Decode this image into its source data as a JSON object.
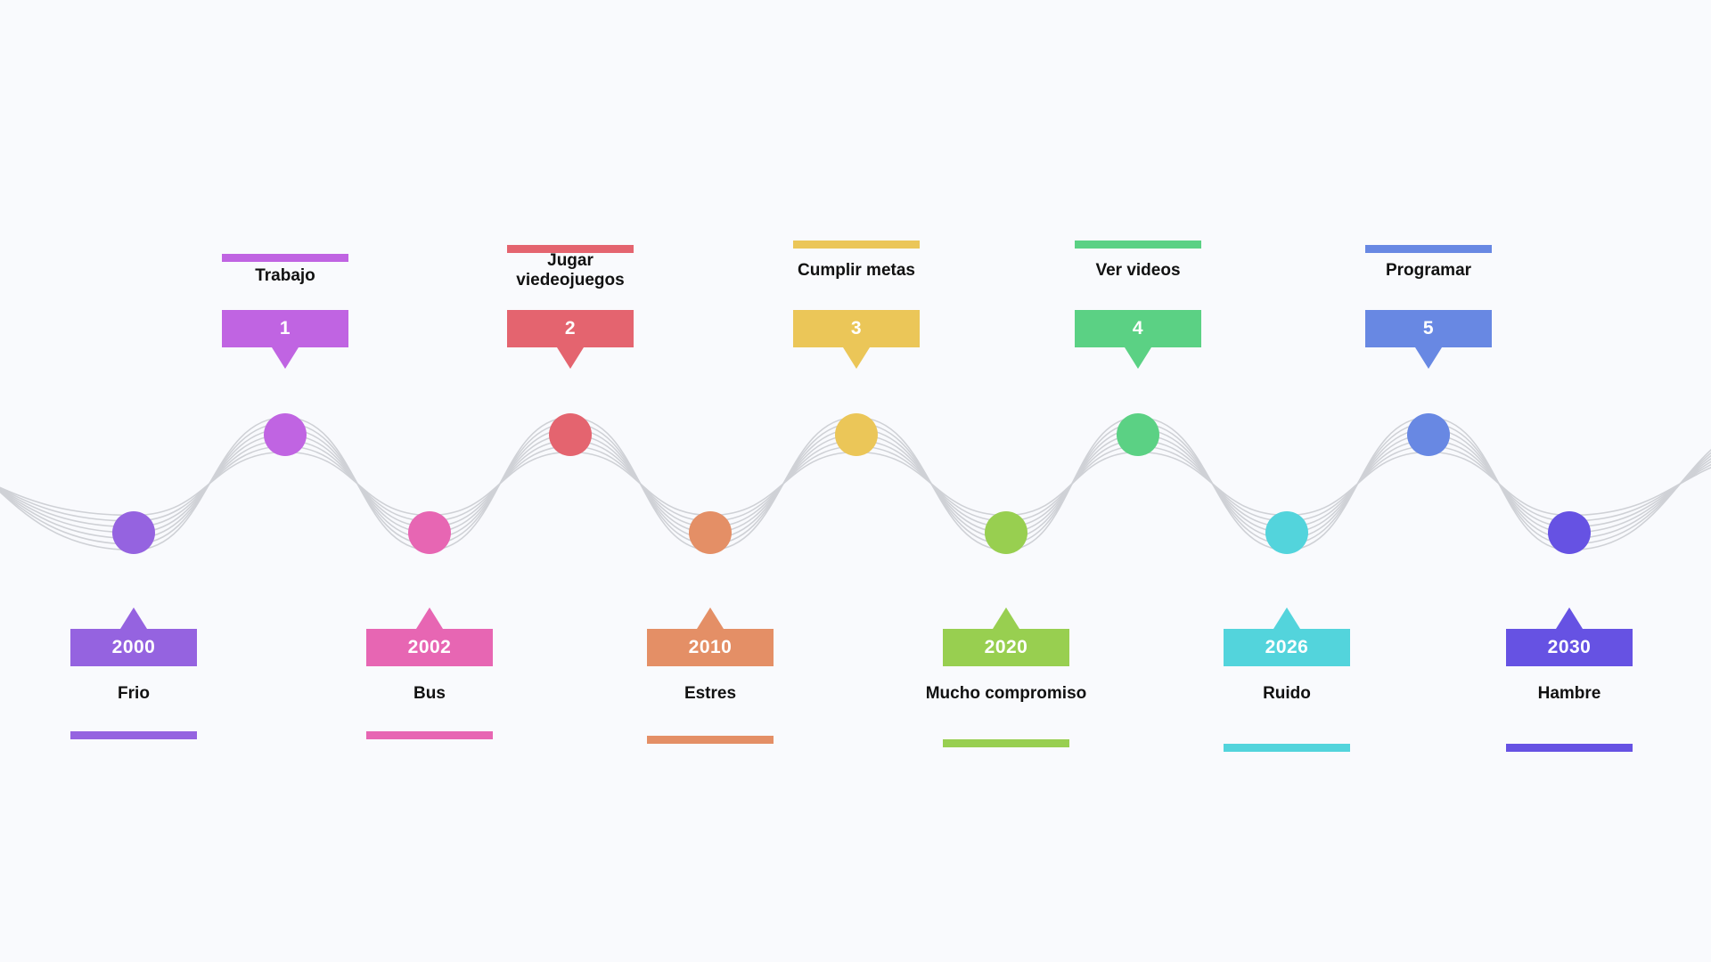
{
  "colors": {
    "wave": "#cfd1d6",
    "background": "#f9fafd"
  },
  "top_items": [
    {
      "number": "1",
      "label": "Trabajo",
      "color": "#c064e2"
    },
    {
      "number": "2",
      "label": "Jugar viedeojuegos",
      "color": "#e4646f"
    },
    {
      "number": "3",
      "label": "Cumplir metas",
      "color": "#ebc658"
    },
    {
      "number": "4",
      "label": "Ver videos",
      "color": "#5bd184"
    },
    {
      "number": "5",
      "label": "Programar",
      "color": "#6888e3"
    }
  ],
  "bottom_items": [
    {
      "year": "2000",
      "label": "Frio",
      "color": "#9563e0"
    },
    {
      "year": "2002",
      "label": "Bus",
      "color": "#e766b3"
    },
    {
      "year": "2010",
      "label": "Estres",
      "color": "#e48f66"
    },
    {
      "year": "2020",
      "label": "Mucho compromiso",
      "color": "#98cf50"
    },
    {
      "year": "2026",
      "label": "Ruido",
      "color": "#53d4dc"
    },
    {
      "year": "2030",
      "label": "Hambre",
      "color": "#6652e3"
    }
  ]
}
